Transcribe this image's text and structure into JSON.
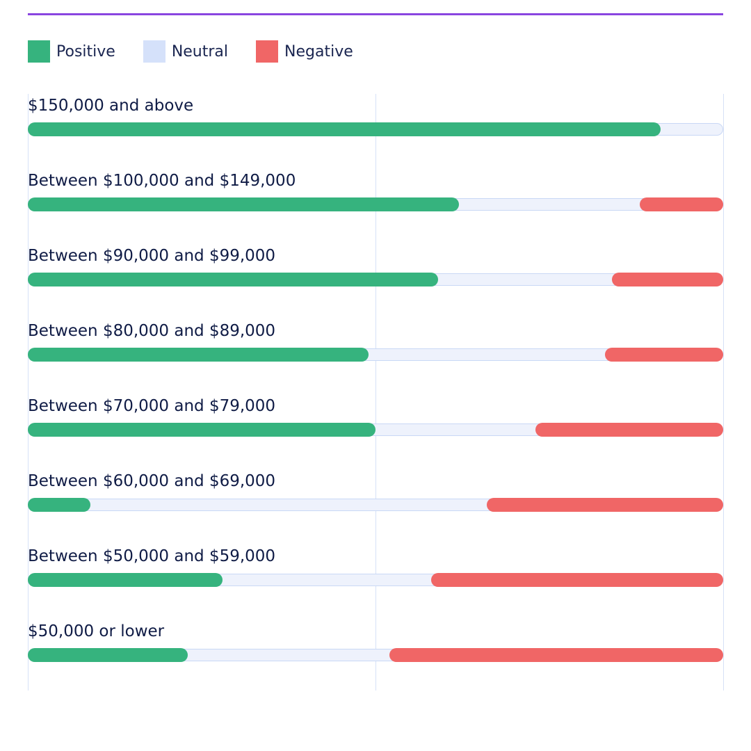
{
  "colors": {
    "accent_line": "#8a45e0",
    "positive": "#36b37e",
    "neutral": "#d5e1fa",
    "negative": "#f06666",
    "track": "#eef2fc",
    "track_border": "#c9d8f5",
    "grid": "#d6e1f7"
  },
  "chart_data": {
    "type": "bar",
    "orientation": "horizontal",
    "stacked": "diverging-100-percent",
    "legend": {
      "placement": "top-left",
      "entries": [
        "Positive",
        "Neutral",
        "Negative"
      ]
    },
    "categories": [
      "$150,000 and above",
      "Between $100,000 and $149,000",
      "Between $90,000 and $99,000",
      "Between $80,000 and $89,000",
      "Between $70,000 and $79,000",
      "Between $60,000 and $69,000",
      "Between $50,000 and $59,000",
      "$50,000 or lower"
    ],
    "series": [
      {
        "name": "Positive",
        "values": [
          91,
          62,
          59,
          49,
          50,
          9,
          28,
          23
        ]
      },
      {
        "name": "Neutral",
        "values": [
          9,
          26,
          25,
          34,
          23,
          57,
          30,
          29
        ]
      },
      {
        "name": "Negative",
        "values": [
          0,
          12,
          16,
          17,
          27,
          34,
          42,
          48
        ]
      }
    ],
    "xlim": [
      0,
      100
    ],
    "grid": true
  }
}
